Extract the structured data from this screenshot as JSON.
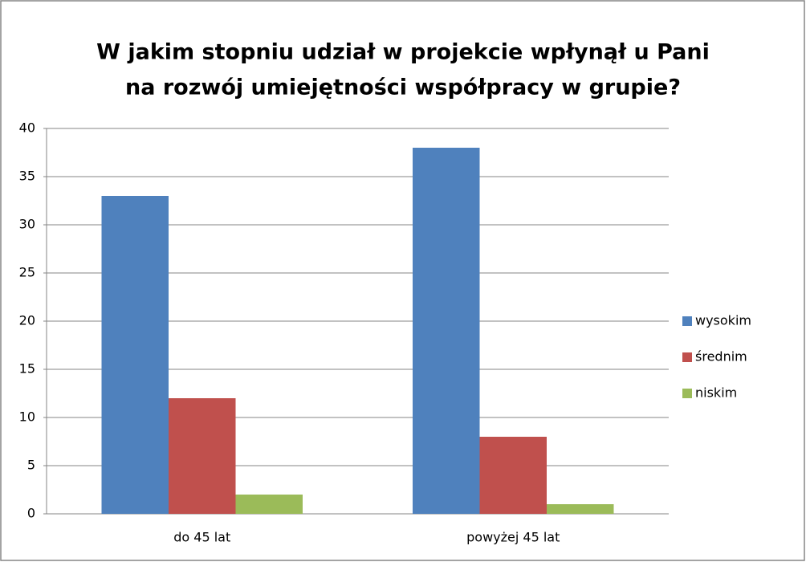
{
  "chart_data": {
    "type": "bar",
    "title": [
      "W jakim stopniu udział w projekcie wpłynął u Pani",
      "na rozwój umiejętności współpracy w grupie?"
    ],
    "categories": [
      "do 45 lat",
      "powyżej 45 lat"
    ],
    "series": [
      {
        "name": "wysokim",
        "color": "#4f81bd",
        "values": [
          33,
          38
        ]
      },
      {
        "name": "średnim",
        "color": "#c0504d",
        "values": [
          12,
          8
        ]
      },
      {
        "name": "niskim",
        "color": "#9bbb59",
        "values": [
          2,
          1
        ]
      }
    ],
    "ylim": [
      0,
      40
    ],
    "yticks": [
      0,
      5,
      10,
      15,
      20,
      25,
      30,
      35,
      40
    ],
    "grid": true,
    "legend": "right"
  }
}
